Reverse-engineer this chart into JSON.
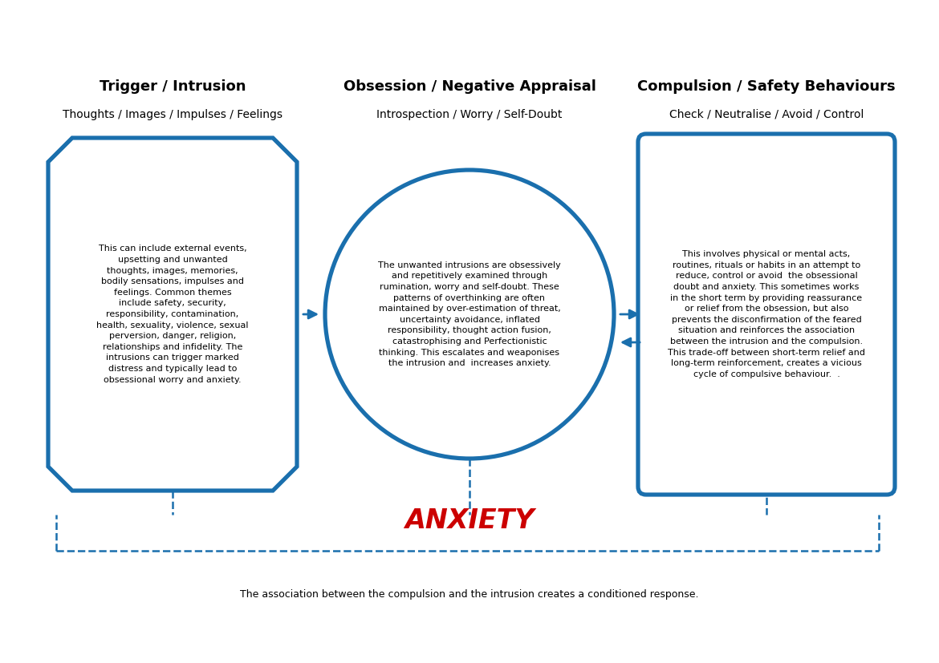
{
  "bg_color": "#ffffff",
  "shape_color": "#1a6fad",
  "shape_lw": 2.5,
  "dashed_color": "#1a6fad",
  "arrow_color": "#1a6fad",
  "anxiety_color": "#cc0000",
  "box1_title": "Trigger / Intrusion",
  "box1_subtitle": "Thoughts / Images / Impulses / Feelings",
  "box1_text": "This can include external events,\nupsetting and unwanted\nthoughts, images, memories,\nbodily sensations, impulses and\nfeelings. Common themes\ninclude safety, security,\nresponsibility, contamination,\nhealth, sexuality, violence, sexual\nperversion, danger, religion,\nrelationships and infidelity. The\nintrusions can trigger marked\ndistress and typically lead to\nobsessional worry and anxiety.",
  "box2_title": "Obsession / Negative Appraisal",
  "box2_subtitle": "Introspection / Worry / Self-Doubt",
  "box2_text": "The unwanted intrusions are obsessively\nand repetitively examined through\nrumination, worry and self-doubt. These\npatterns of overthinking are often\nmaintained by over-estimation of threat,\nuncertainty avoidance, inflated\nresponsibility, thought action fusion,\ncatastrophising and Perfectionistic\nthinking. This escalates and weaponises\nthe intrusion and  increases anxiety.",
  "box3_title": "Compulsion / Safety Behaviours",
  "box3_subtitle": "Check / Neutralise / Avoid / Control",
  "box3_text": "This involves physical or mental acts,\nroutines, rituals or habits in an attempt to\nreduce, control or avoid  the obsessional\ndoubt and anxiety. This sometimes works\nin the short term by providing reassurance\nor relief from the obsession, but also\nprevents the disconfirmation of the feared\nsituation and reinforces the association\nbetween the intrusion and the compulsion.\nThis trade-off between short-term relief and\nlong-term reinforcement, creates a vicious\ncycle of compulsive behaviour.  .",
  "anxiety_label": "ANXIETY",
  "footer_text": "The association between the compulsion and the intrusion creates a conditioned response.",
  "title_fontsize": 13,
  "subtitle_fontsize": 10,
  "body_fontsize": 8,
  "anxiety_fontsize": 24,
  "footer_fontsize": 9
}
